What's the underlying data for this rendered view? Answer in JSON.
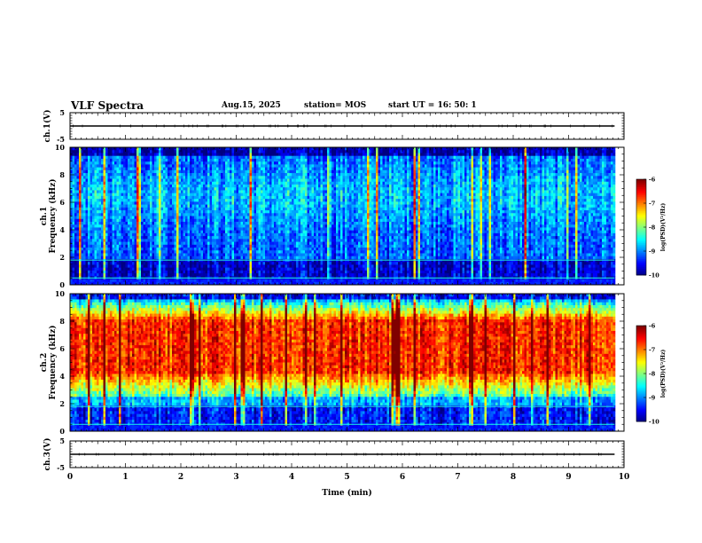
{
  "header": {
    "title": "VLF Spectra",
    "date": "Aug.15, 2025",
    "station": "station= MOS",
    "start_ut": "start  UT =   16: 50: 1"
  },
  "chart_data": [
    {
      "type": "line",
      "id": "ch1-wave",
      "ylabel": "ch.1(V)",
      "ylim": [
        -5,
        5
      ],
      "yticks": [
        5,
        -5
      ],
      "xlim": [
        0,
        10
      ],
      "series": [
        {
          "x": [
            0,
            9.83
          ],
          "y": [
            0,
            0
          ]
        }
      ]
    },
    {
      "type": "heatmap",
      "id": "ch1-spec",
      "ylabel": "ch.1\nFrequency (kHz)",
      "ylabel_lines": [
        "ch.1",
        "Frequency (kHz)"
      ],
      "ylim": [
        0,
        10
      ],
      "yticks": [
        0,
        2,
        4,
        6,
        8,
        10
      ],
      "xlim": [
        0,
        10
      ],
      "data_x_end": 9.83,
      "colorbar": {
        "label": "log(PSD)(V²/Hz)",
        "range": [
          -10,
          -6
        ],
        "ticks": [
          -6,
          -7,
          -8,
          -9,
          -10
        ]
      }
    },
    {
      "type": "heatmap",
      "id": "ch2-spec",
      "ylabel": "ch.2\nFrequency (kHz)",
      "ylabel_lines": [
        "ch.2",
        "Frequency (kHz)"
      ],
      "ylim": [
        0,
        10
      ],
      "yticks": [
        0,
        2,
        4,
        6,
        8,
        10
      ],
      "xlim": [
        0,
        10
      ],
      "data_x_end": 9.83,
      "colorbar": {
        "label": "log(PSD)(V²/Hz)",
        "range": [
          -10,
          -6
        ],
        "ticks": [
          -6,
          -7,
          -8,
          -9,
          -10
        ]
      }
    },
    {
      "type": "line",
      "id": "ch3-wave",
      "ylabel": "ch.3(V)",
      "ylim": [
        -5,
        5
      ],
      "yticks": [
        5,
        -5
      ],
      "xlim": [
        0,
        10
      ],
      "xlabel": "Time  (min)",
      "xticks": [
        0,
        1,
        2,
        3,
        4,
        5,
        6,
        7,
        8,
        9,
        10
      ],
      "series": [
        {
          "x": [
            0,
            9.83
          ],
          "y": [
            0,
            0
          ]
        }
      ]
    }
  ]
}
